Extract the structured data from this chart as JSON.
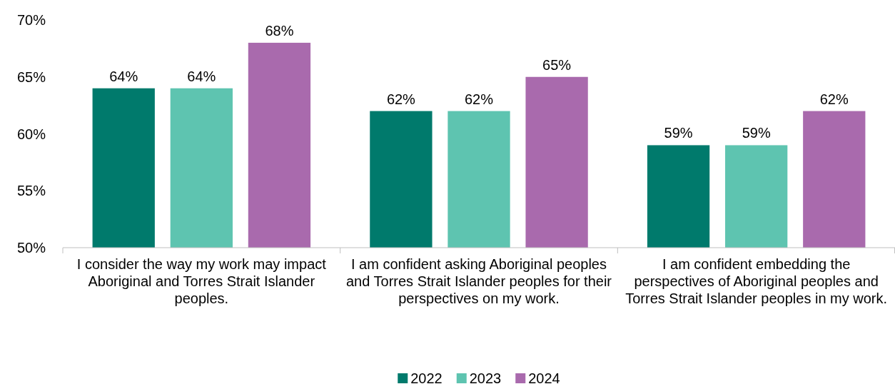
{
  "chart_data": {
    "type": "bar",
    "categories": [
      "I consider the way my work may impact Aboriginal and Torres Strait Islander peoples.",
      "I am confident asking Aboriginal peoples and Torres Strait Islander peoples for their perspectives on my work.",
      "I am confident embedding the perspectives of Aboriginal peoples and Torres Strait Islander peoples in my work."
    ],
    "series": [
      {
        "name": "2022",
        "color": "#007a6c",
        "values": [
          64,
          62,
          59
        ],
        "value_labels": [
          "64%",
          "62%",
          "59%"
        ]
      },
      {
        "name": "2023",
        "color": "#5ec4b0",
        "values": [
          64,
          62,
          59
        ],
        "value_labels": [
          "64%",
          "62%",
          "59%"
        ]
      },
      {
        "name": "2024",
        "color": "#a96aad",
        "values": [
          68,
          65,
          62
        ],
        "value_labels": [
          "68%",
          "65%",
          "62%"
        ]
      }
    ],
    "ylim": [
      50,
      70
    ],
    "yticks": [
      {
        "value": 50,
        "label": "50%"
      },
      {
        "value": 55,
        "label": "55%"
      },
      {
        "value": 60,
        "label": "60%"
      },
      {
        "value": 65,
        "label": "65%"
      },
      {
        "value": 70,
        "label": "70%"
      }
    ],
    "grid": false,
    "legend": "bottom"
  }
}
